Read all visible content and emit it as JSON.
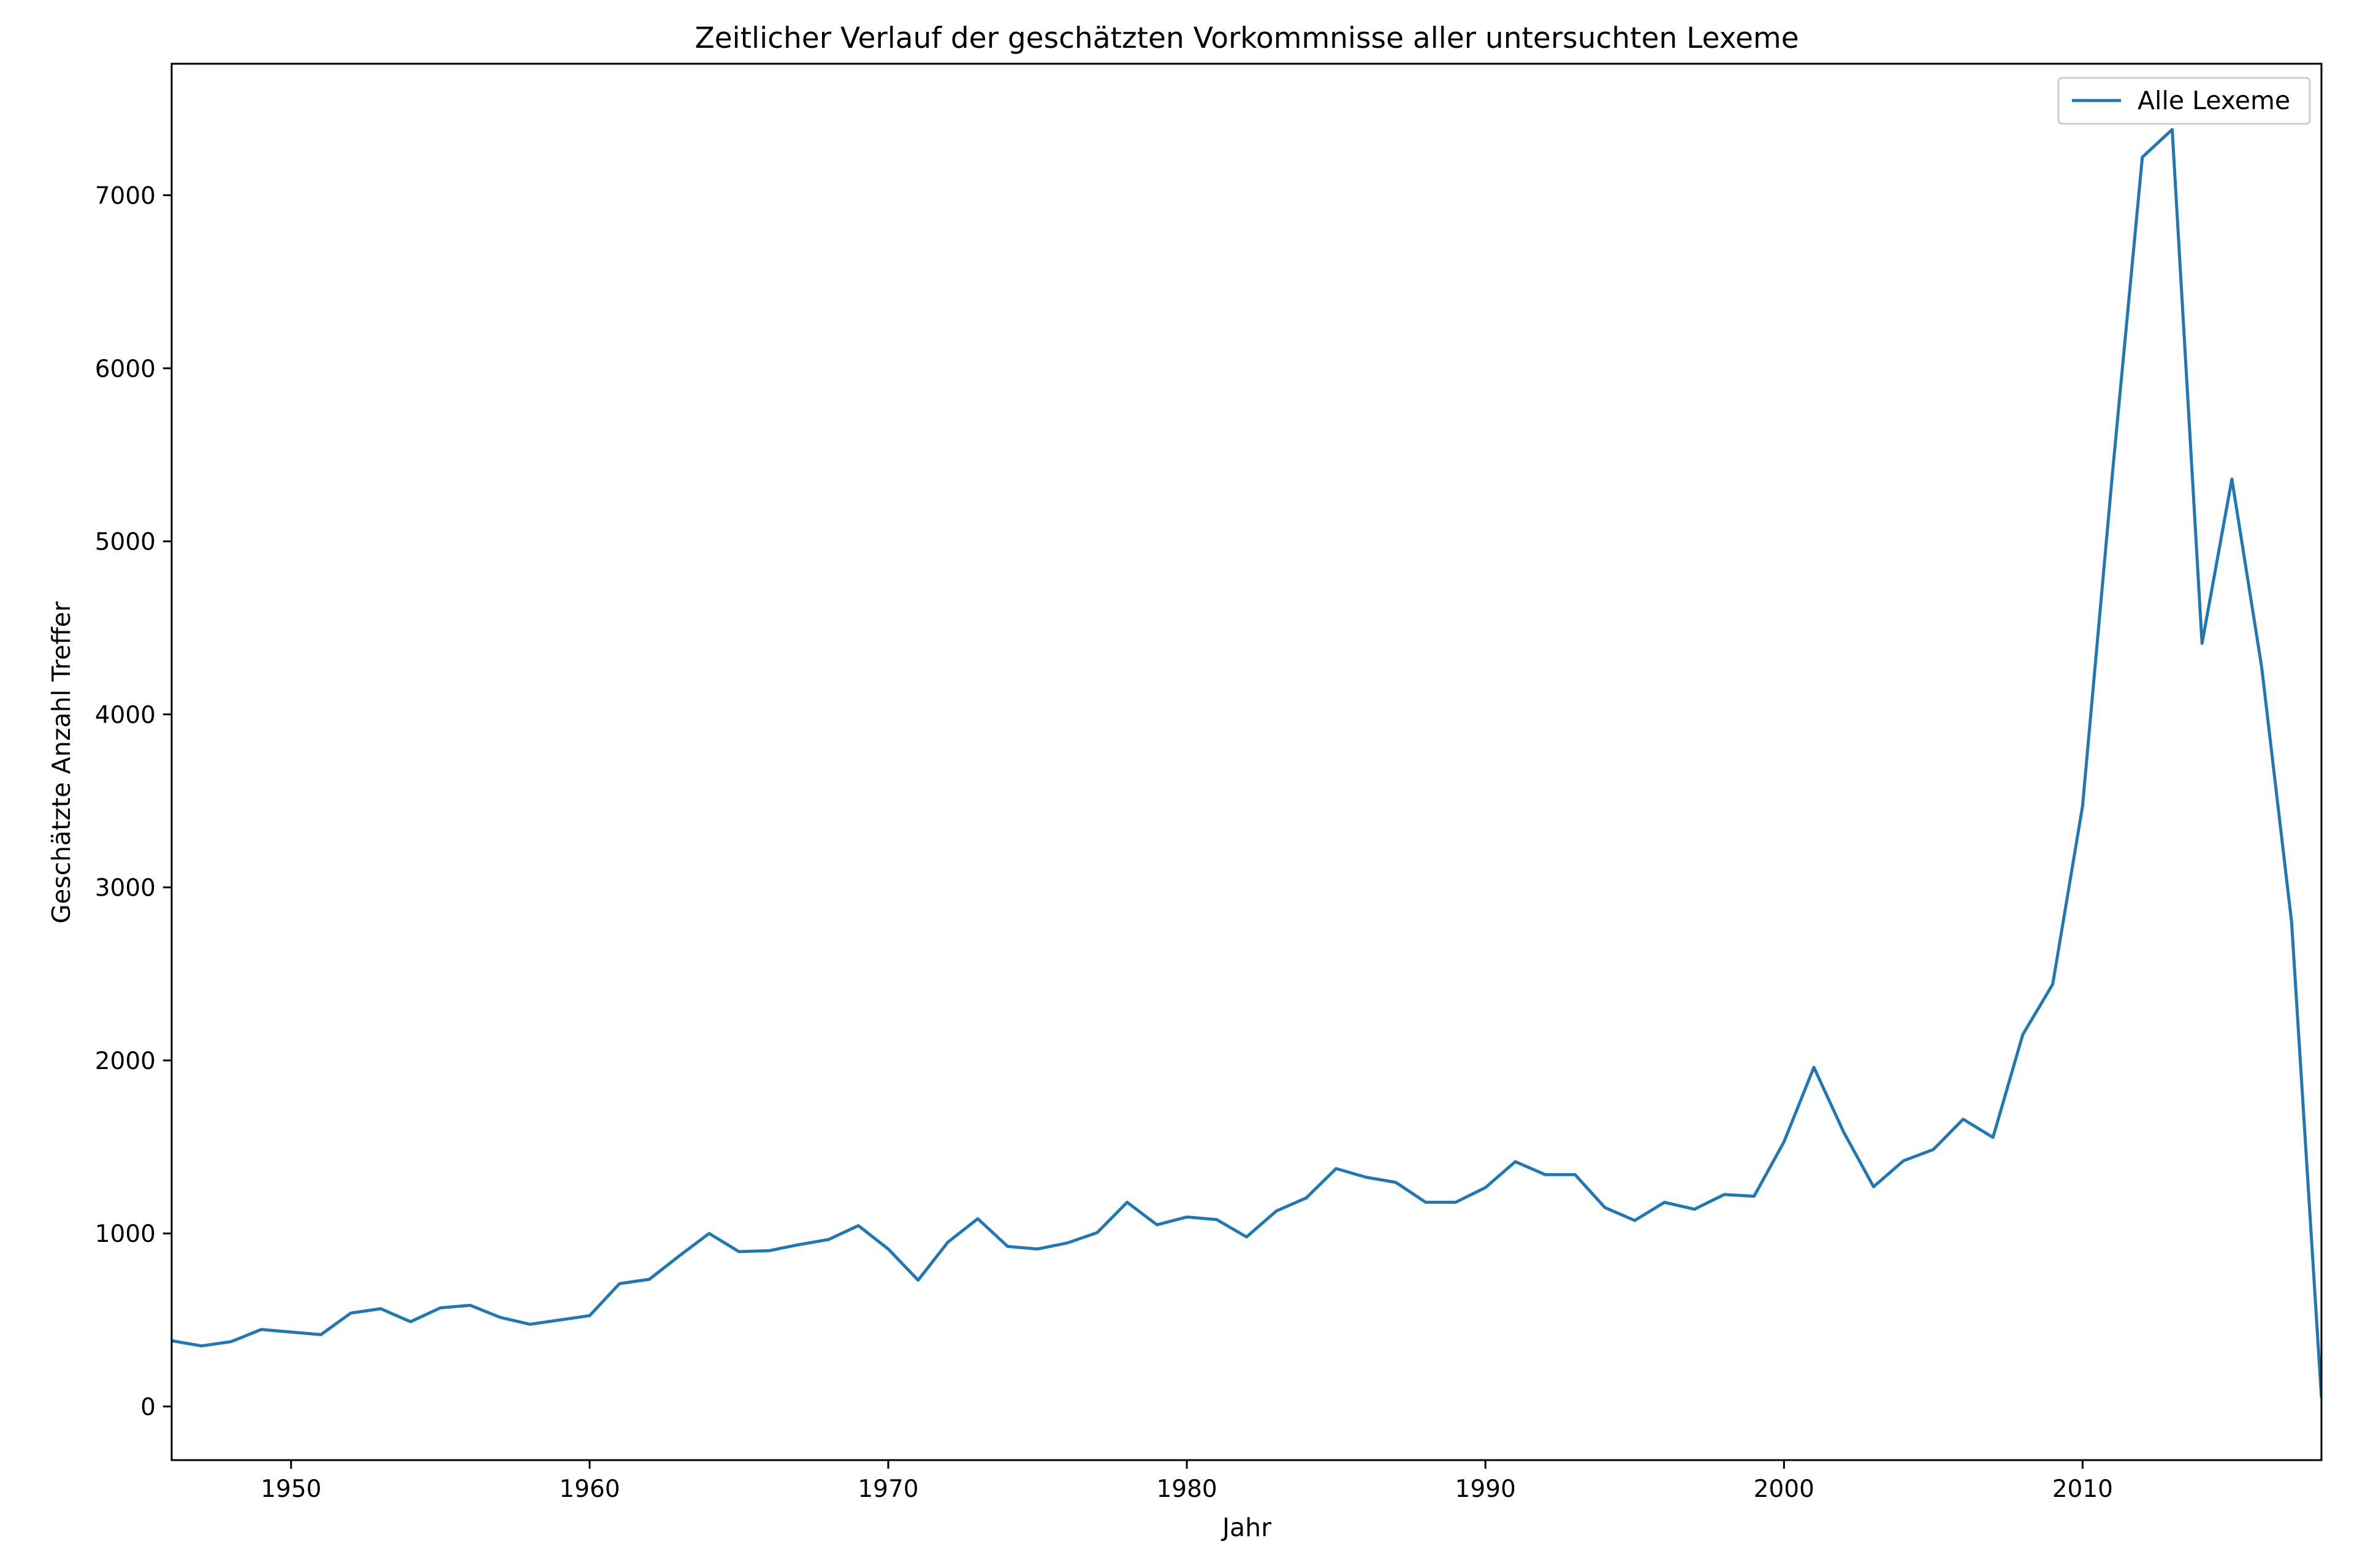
{
  "chart_data": {
    "type": "line",
    "title": "Zeitlicher Verlauf der geschätzten Vorkommnisse aller untersuchten Lexeme",
    "xlabel": "Jahr",
    "ylabel": "Geschätzte Anzahl Treffer",
    "xlim": [
      1946,
      2018
    ],
    "ylim": [
      -310,
      7760
    ],
    "xticks": [
      1950,
      1960,
      1970,
      1980,
      1990,
      2000,
      2010
    ],
    "yticks": [
      0,
      1000,
      2000,
      3000,
      4000,
      5000,
      6000,
      7000
    ],
    "grid": false,
    "legend_position": "top-right",
    "colors": {
      "line": "#1f77b4",
      "axes": "#000000",
      "legend_border": "#cccccc"
    },
    "series": [
      {
        "name": "Alle Lexeme",
        "x": [
          1946,
          1947,
          1948,
          1949,
          1950,
          1951,
          1952,
          1953,
          1954,
          1955,
          1956,
          1957,
          1958,
          1959,
          1960,
          1961,
          1962,
          1963,
          1964,
          1965,
          1966,
          1967,
          1968,
          1969,
          1970,
          1971,
          1972,
          1973,
          1974,
          1975,
          1976,
          1977,
          1978,
          1979,
          1980,
          1981,
          1982,
          1983,
          1984,
          1985,
          1986,
          1987,
          1988,
          1989,
          1990,
          1991,
          1992,
          1993,
          1994,
          1995,
          1996,
          1997,
          1998,
          1999,
          2000,
          2001,
          2002,
          2003,
          2004,
          2005,
          2006,
          2007,
          2008,
          2009,
          2010,
          2011,
          2012,
          2013,
          2014,
          2015,
          2016,
          2017,
          2018
        ],
        "values": [
          380,
          350,
          375,
          445,
          430,
          415,
          540,
          565,
          490,
          570,
          585,
          515,
          475,
          500,
          525,
          710,
          735,
          870,
          1000,
          895,
          900,
          935,
          965,
          1045,
          910,
          730,
          950,
          1085,
          925,
          910,
          945,
          1005,
          1180,
          1050,
          1095,
          1080,
          980,
          1130,
          1205,
          1375,
          1325,
          1295,
          1180,
          1180,
          1265,
          1415,
          1340,
          1340,
          1150,
          1075,
          1180,
          1140,
          1225,
          1215,
          1530,
          1960,
          1585,
          1270,
          1420,
          1485,
          1660,
          1555,
          2150,
          2440,
          3470,
          5390,
          7220,
          7380,
          4410,
          5360,
          4270,
          2800,
          50
        ]
      }
    ]
  }
}
